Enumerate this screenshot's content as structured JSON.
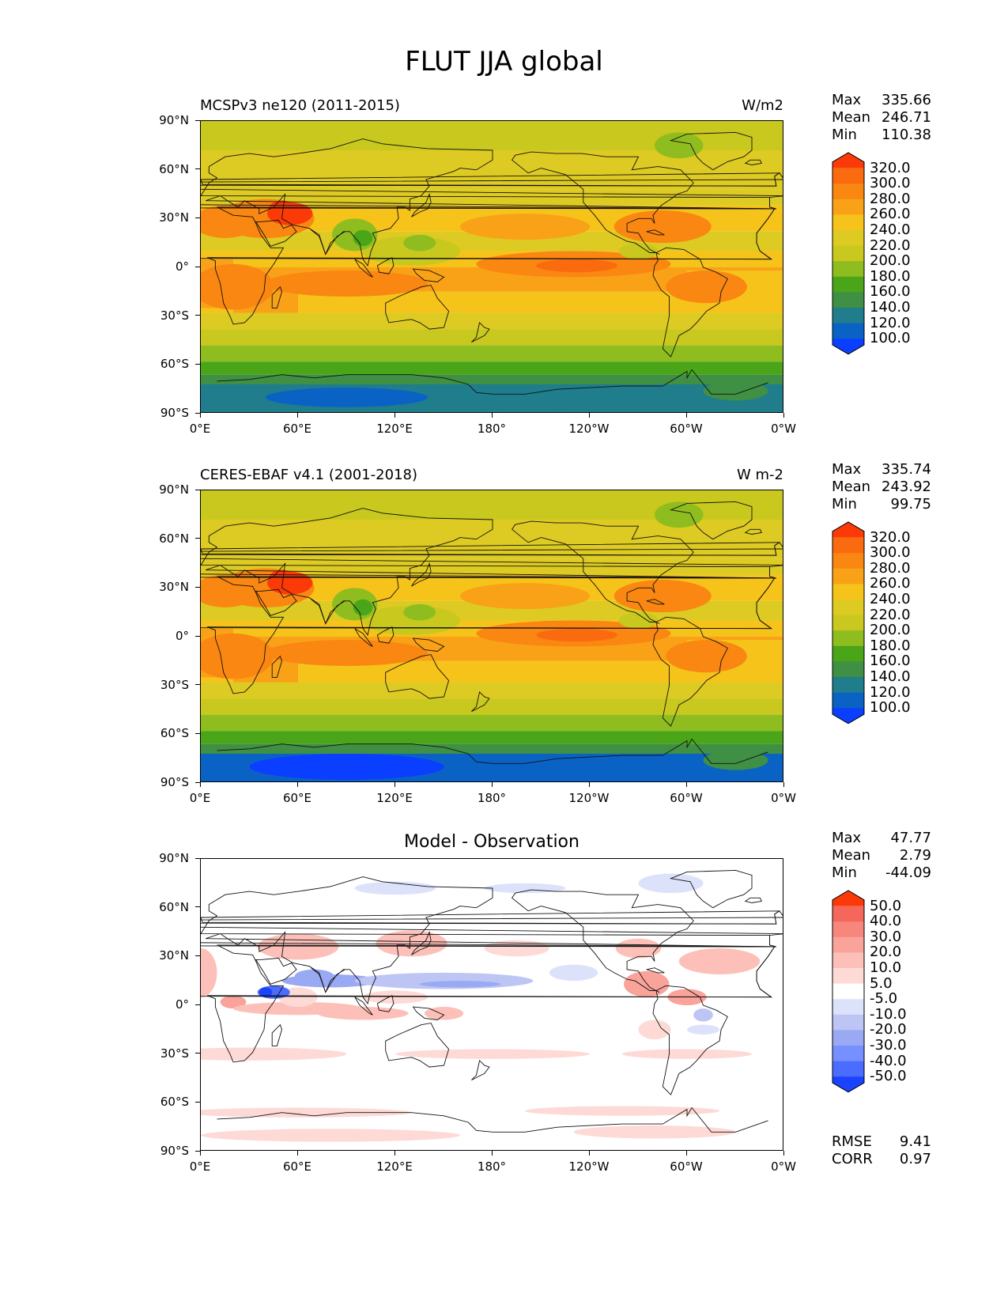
{
  "title": "FLUT JJA global",
  "lat_labels": [
    "90°N",
    "60°N",
    "30°N",
    "0°",
    "30°S",
    "60°S",
    "90°S"
  ],
  "lon_labels": [
    "0°E",
    "60°E",
    "120°E",
    "180°",
    "120°W",
    "60°W",
    "0°W"
  ],
  "palette_abs": [
    "#0b3fff",
    "#0a63c4",
    "#1f7d8c",
    "#3f8f44",
    "#4aa518",
    "#8fbd1f",
    "#c8c81e",
    "#ddca22",
    "#f6c31a",
    "#f9a117",
    "#f98711",
    "#fa6a0e",
    "#fb3a08"
  ],
  "palette_diff": [
    "#1a43ff",
    "#4a6cff",
    "#7690ff",
    "#9aa9f4",
    "#bcc5f4",
    "#dde2fb",
    "#ffffff",
    "#fddad6",
    "#fcc0b9",
    "#f9a39a",
    "#f7867c",
    "#f4675a",
    "#fb3a08"
  ],
  "panels": [
    {
      "id": "model",
      "left_title": "MCSPv3 ne120 (2011-2015)",
      "right_title": "W/m2",
      "center_title": "",
      "stats": [
        {
          "label": "Max",
          "value": "335.66"
        },
        {
          "label": "Mean",
          "value": "246.71"
        },
        {
          "label": "Min",
          "value": "110.38"
        }
      ],
      "colorbar_labels": [
        "320.0",
        "300.0",
        "280.0",
        "260.0",
        "240.0",
        "220.0",
        "200.0",
        "180.0",
        "160.0",
        "140.0",
        "120.0",
        "100.0"
      ],
      "kind": "model"
    },
    {
      "id": "obs",
      "left_title": "CERES-EBAF v4.1 (2001-2018)",
      "right_title": "W m-2",
      "center_title": "",
      "stats": [
        {
          "label": "Max",
          "value": "335.74"
        },
        {
          "label": "Mean",
          "value": "243.92"
        },
        {
          "label": "Min",
          "value": "99.75"
        }
      ],
      "colorbar_labels": [
        "320.0",
        "300.0",
        "280.0",
        "260.0",
        "240.0",
        "220.0",
        "200.0",
        "180.0",
        "160.0",
        "140.0",
        "120.0",
        "100.0"
      ],
      "kind": "obs"
    },
    {
      "id": "diff",
      "left_title": "",
      "right_title": "",
      "center_title": "Model - Observation",
      "stats": [
        {
          "label": "Max",
          "value": "47.77"
        },
        {
          "label": "Mean",
          "value": "2.79"
        },
        {
          "label": "Min",
          "value": "-44.09"
        }
      ],
      "colorbar_labels": [
        "50.0",
        "40.0",
        "30.0",
        "20.0",
        "10.0",
        "5.0",
        "-5.0",
        "-10.0",
        "-20.0",
        "-30.0",
        "-40.0",
        "-50.0"
      ],
      "extra_stats": [
        {
          "label": "RMSE",
          "value": "9.41"
        },
        {
          "label": "CORR",
          "value": "0.97"
        }
      ],
      "kind": "diff"
    }
  ]
}
